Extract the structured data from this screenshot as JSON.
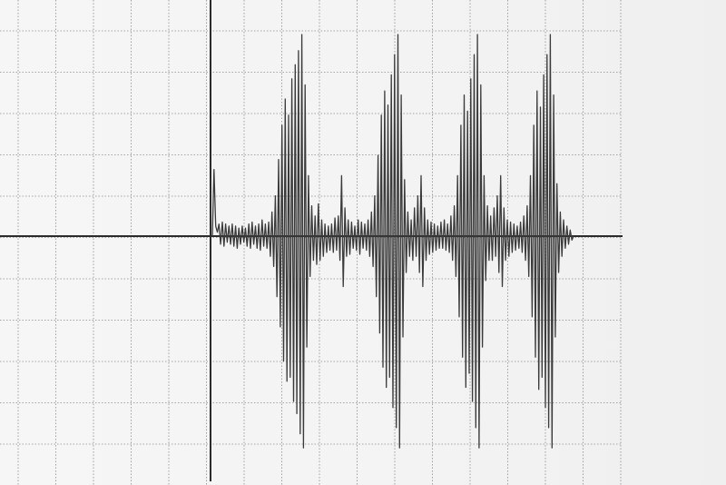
{
  "chart_data": {
    "type": "line",
    "title": "",
    "xlabel": "",
    "ylabel": "",
    "grid": true,
    "axes": "crosshair",
    "series": [
      {
        "values": [
          0.0,
          0.33,
          0.05,
          0.02,
          0.06,
          -0.04,
          0.07,
          -0.05,
          0.06,
          -0.03,
          0.05,
          -0.04,
          0.06,
          -0.05,
          0.05,
          -0.06,
          0.04,
          -0.04,
          0.05,
          -0.03,
          0.04,
          -0.05,
          0.06,
          -0.06,
          0.07,
          -0.04,
          0.05,
          -0.06,
          0.06,
          -0.07,
          0.08,
          -0.05,
          0.06,
          -0.06,
          0.07,
          -0.1,
          0.12,
          -0.15,
          0.2,
          -0.3,
          0.38,
          -0.45,
          0.55,
          -0.62,
          0.68,
          -0.72,
          0.6,
          -0.7,
          0.78,
          -0.82,
          0.85,
          -0.88,
          0.92,
          -0.98,
          1.0,
          -1.05,
          0.75,
          -0.55,
          0.3,
          -0.2,
          0.15,
          -0.12,
          0.1,
          -0.14,
          0.16,
          -0.12,
          0.08,
          -0.1,
          0.06,
          -0.08,
          0.05,
          -0.07,
          0.06,
          -0.08,
          0.09,
          -0.07,
          0.1,
          -0.12,
          0.3,
          -0.25,
          0.14,
          -0.1,
          0.08,
          -0.09,
          0.07,
          -0.06,
          0.05,
          -0.07,
          0.08,
          -0.09,
          0.07,
          -0.06,
          0.06,
          -0.07,
          0.08,
          -0.1,
          0.12,
          -0.15,
          0.2,
          -0.3,
          0.4,
          -0.48,
          0.6,
          -0.65,
          0.72,
          -0.75,
          0.65,
          -0.7,
          0.8,
          -0.85,
          0.9,
          -0.95,
          1.0,
          -1.05,
          0.7,
          -0.5,
          0.28,
          -0.18,
          0.12,
          -0.1,
          0.08,
          -0.12,
          0.14,
          -0.1,
          0.2,
          -0.18,
          0.3,
          -0.25,
          0.14,
          -0.12,
          0.08,
          -0.09,
          0.07,
          -0.08,
          0.06,
          -0.07,
          0.05,
          -0.06,
          0.07,
          -0.06,
          0.08,
          -0.07,
          0.06,
          -0.08,
          0.1,
          -0.12,
          0.15,
          -0.2,
          0.3,
          -0.4,
          0.55,
          -0.6,
          0.7,
          -0.75,
          0.62,
          -0.68,
          0.78,
          -0.82,
          0.9,
          -0.95,
          1.0,
          -1.05,
          0.75,
          -0.55,
          0.3,
          -0.22,
          0.15,
          -0.12,
          0.1,
          -0.12,
          0.14,
          -0.1,
          0.2,
          -0.18,
          0.3,
          -0.25,
          0.14,
          -0.12,
          0.08,
          -0.1,
          0.07,
          -0.08,
          0.06,
          -0.07,
          0.05,
          -0.06,
          0.07,
          -0.08,
          0.1,
          -0.12,
          0.15,
          -0.2,
          0.3,
          -0.4,
          0.55,
          -0.6,
          0.72,
          -0.76,
          0.64,
          -0.7,
          0.8,
          -0.85,
          0.9,
          -0.95,
          1.0,
          -1.05,
          0.7,
          -0.5,
          0.26,
          -0.18,
          0.12,
          -0.1,
          0.08,
          -0.06,
          0.05,
          -0.04,
          0.03,
          -0.02,
          0.0
        ]
      }
    ]
  },
  "colors": {
    "background": "#f3f3f3",
    "grid": "#8a8a8a",
    "axis": "#2b2b2b",
    "trace": "#3a3a3a"
  }
}
